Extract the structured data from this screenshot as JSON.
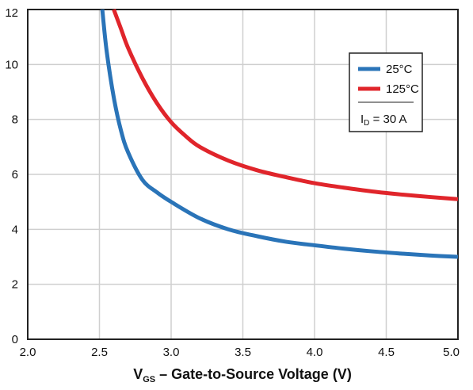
{
  "chart_data": {
    "type": "line",
    "title": "",
    "xlabel_main": "V",
    "xlabel_sub": "GS",
    "xlabel_rest": " – Gate-to-Source Voltage (V)",
    "ylabel": "",
    "xlim": [
      2.0,
      5.0
    ],
    "ylim": [
      0,
      12
    ],
    "x_ticks": [
      "2.0",
      "2.5",
      "3.0",
      "3.5",
      "4.0",
      "4.5",
      "5.0"
    ],
    "y_ticks": [
      "0",
      "2",
      "4",
      "6",
      "8",
      "10",
      "12"
    ],
    "grid": true,
    "legend_position": "top-right",
    "legend_condition_main": "I",
    "legend_condition_sub": "D",
    "legend_condition_rest": " = 30 A",
    "series": [
      {
        "name": "25°C",
        "color": "#2a74b8",
        "points": [
          [
            2.52,
            12.0
          ],
          [
            2.55,
            10.5
          ],
          [
            2.6,
            8.8
          ],
          [
            2.65,
            7.6
          ],
          [
            2.7,
            6.8
          ],
          [
            2.8,
            5.8
          ],
          [
            2.9,
            5.35
          ],
          [
            3.0,
            5.0
          ],
          [
            3.2,
            4.4
          ],
          [
            3.4,
            4.0
          ],
          [
            3.6,
            3.75
          ],
          [
            3.8,
            3.55
          ],
          [
            4.0,
            3.42
          ],
          [
            4.2,
            3.3
          ],
          [
            4.4,
            3.2
          ],
          [
            4.6,
            3.12
          ],
          [
            4.8,
            3.05
          ],
          [
            5.0,
            3.0
          ]
        ]
      },
      {
        "name": "125°C",
        "color": "#e0252b",
        "points": [
          [
            2.6,
            12.0
          ],
          [
            2.65,
            11.3
          ],
          [
            2.7,
            10.6
          ],
          [
            2.8,
            9.5
          ],
          [
            2.9,
            8.6
          ],
          [
            3.0,
            7.9
          ],
          [
            3.1,
            7.4
          ],
          [
            3.2,
            7.0
          ],
          [
            3.4,
            6.5
          ],
          [
            3.6,
            6.15
          ],
          [
            3.8,
            5.9
          ],
          [
            4.0,
            5.68
          ],
          [
            4.2,
            5.52
          ],
          [
            4.4,
            5.38
          ],
          [
            4.6,
            5.27
          ],
          [
            4.8,
            5.18
          ],
          [
            5.0,
            5.1
          ]
        ]
      }
    ]
  }
}
